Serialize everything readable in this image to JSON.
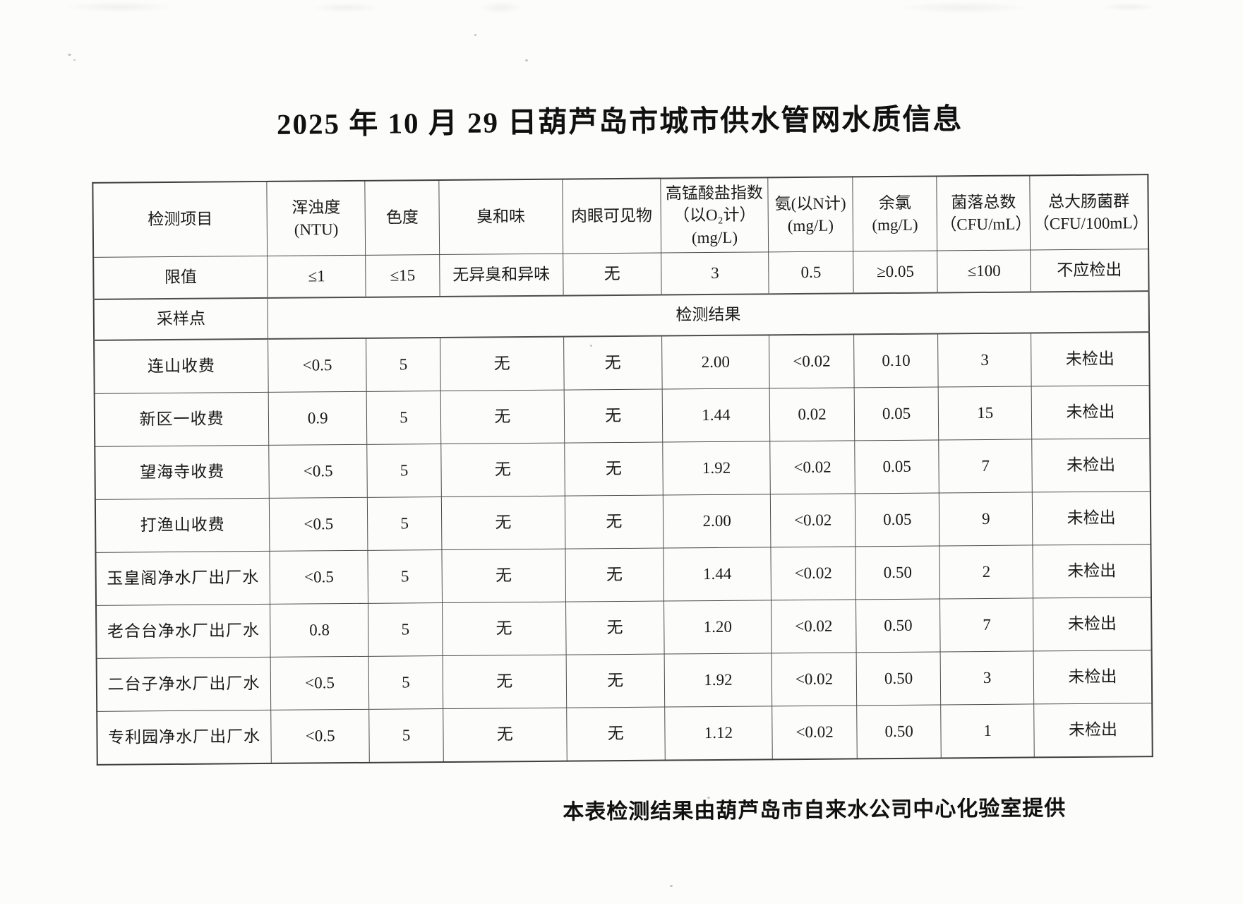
{
  "page": {
    "title": "2025 年 10 月 29 日葫芦岛市城市供水管网水质信息",
    "footer": "本表检测结果由葫芦岛市自来水公司中心化验室提供"
  },
  "table": {
    "header_row": {
      "item_label": "检测项目",
      "columns": [
        "浑浊度(NTU)",
        "色度",
        "臭和味",
        "肉眼可见物",
        [
          "高锰酸盐指数",
          "（以O₂计）",
          "(mg/L)"
        ],
        [
          "氨(以N计)",
          "(mg/L)"
        ],
        [
          "余氯",
          "(mg/L)"
        ],
        [
          "菌落总数",
          "（CFU/mL）"
        ],
        [
          "总大肠菌群",
          "（CFU/100mL）"
        ]
      ]
    },
    "limit_row": {
      "label": "限值",
      "values": [
        "≤1",
        "≤15",
        "无异臭和异味",
        "无",
        "3",
        "0.5",
        "≥0.05",
        "≤100",
        "不应检出"
      ]
    },
    "sampling_row": {
      "label": "采样点",
      "result_label": "检测结果"
    },
    "rows": [
      {
        "site": "连山收费",
        "values": [
          "<0.5",
          "5",
          "无",
          "无",
          "2.00",
          "<0.02",
          "0.10",
          "3",
          "未检出"
        ]
      },
      {
        "site": "新区一收费",
        "values": [
          "0.9",
          "5",
          "无",
          "无",
          "1.44",
          "0.02",
          "0.05",
          "15",
          "未检出"
        ]
      },
      {
        "site": "望海寺收费",
        "values": [
          "<0.5",
          "5",
          "无",
          "无",
          "1.92",
          "<0.02",
          "0.05",
          "7",
          "未检出"
        ]
      },
      {
        "site": "打渔山收费",
        "values": [
          "<0.5",
          "5",
          "无",
          "无",
          "2.00",
          "<0.02",
          "0.05",
          "9",
          "未检出"
        ]
      },
      {
        "site": "玉皇阁净水厂出厂水",
        "values": [
          "<0.5",
          "5",
          "无",
          "无",
          "1.44",
          "<0.02",
          "0.50",
          "2",
          "未检出"
        ]
      },
      {
        "site": "老合台净水厂出厂水",
        "values": [
          "0.8",
          "5",
          "无",
          "无",
          "1.20",
          "<0.02",
          "0.50",
          "7",
          "未检出"
        ]
      },
      {
        "site": "二台子净水厂出厂水",
        "values": [
          "<0.5",
          "5",
          "无",
          "无",
          "1.92",
          "<0.02",
          "0.50",
          "3",
          "未检出"
        ]
      },
      {
        "site": "专利园净水厂出厂水",
        "values": [
          "<0.5",
          "5",
          "无",
          "无",
          "1.12",
          "<0.02",
          "0.50",
          "1",
          "未检出"
        ]
      }
    ]
  },
  "colors": {
    "paper": "#fcfcfb",
    "ink": "#1a1a1a",
    "table_border": "#4c4c4c"
  }
}
